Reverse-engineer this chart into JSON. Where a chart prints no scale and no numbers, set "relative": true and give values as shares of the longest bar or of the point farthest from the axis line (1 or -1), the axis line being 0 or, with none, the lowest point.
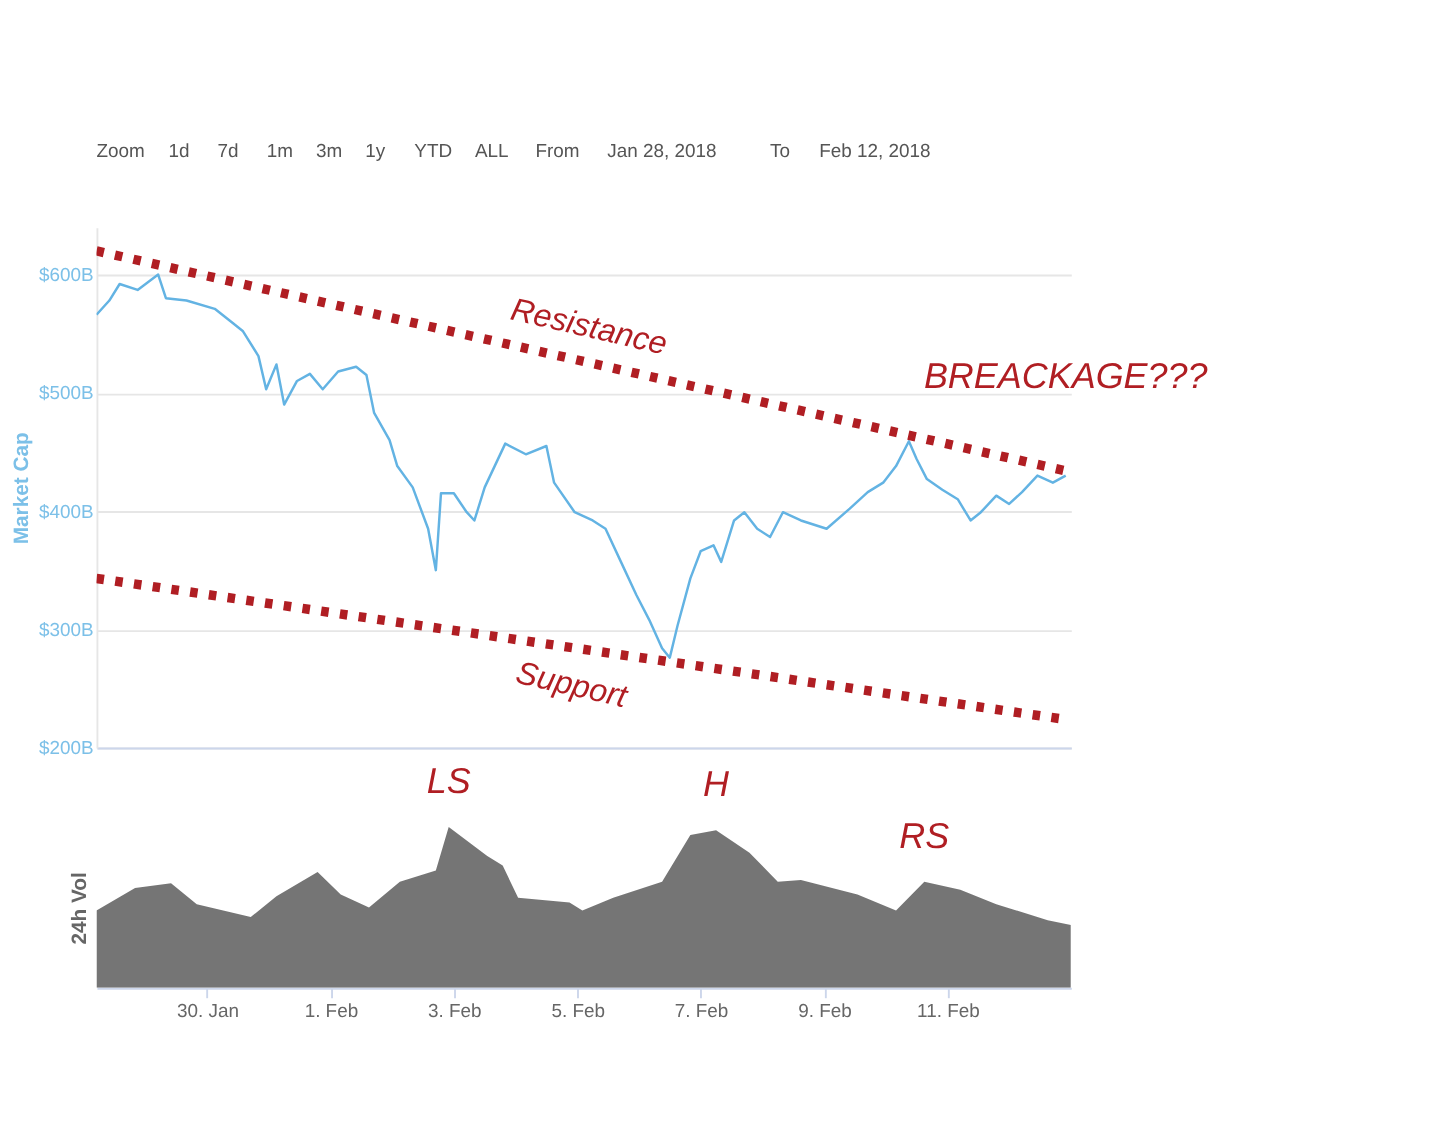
{
  "chart_data": [
    {
      "type": "line",
      "ylabel": "Market Cap",
      "annotations": [
        "Zoom",
        "1d",
        "7d",
        "1m",
        "3m",
        "1y",
        "YTD",
        "ALL",
        "From",
        "Jan 28, 2018",
        "To",
        "Feb 12, 2018",
        {
          "text": "BREACKAGE???",
          "x": "2018-02-12T22:00",
          "y": 434
        }
      ],
      "x": [
        "2018-01-28T05:00",
        "2018-01-28T10:00",
        "2018-01-28T14:00",
        "2018-01-28T21:00",
        "2018-01-29T05:00",
        "2018-01-29T08:00",
        "2018-01-29T16:00",
        "2018-01-30T03:00",
        "2018-01-30T10:00",
        "2018-01-30T14:00",
        "2018-01-30T20:00",
        "2018-01-30T23:00",
        "2018-01-31T03:00",
        "2018-01-31T06:00",
        "2018-01-31T11:00",
        "2018-01-31T16:00",
        "2018-01-31T21:00",
        "2018-02-01T03:00",
        "2018-02-01T10:00",
        "2018-02-01T14:00",
        "2018-02-01T17:00",
        "2018-02-01T23:00",
        "2018-02-02T02:00",
        "2018-02-02T08:00",
        "2018-02-02T14:00",
        "2018-02-02T17:00",
        "2018-02-02T19:00",
        "2018-02-03T00:00",
        "2018-02-03T05:00",
        "2018-02-03T08:00",
        "2018-02-03T12:00",
        "2018-02-03T20:00",
        "2018-02-04T04:00",
        "2018-02-04T12:00",
        "2018-02-04T15:00",
        "2018-02-04T23:00",
        "2018-02-05T06:00",
        "2018-02-05T11:00",
        "2018-02-05T17:00",
        "2018-02-05T23:00",
        "2018-02-06T04:00",
        "2018-02-06T09:00",
        "2018-02-06T12:00",
        "2018-02-06T15:00",
        "2018-02-06T20:00",
        "2018-02-07T00:00",
        "2018-02-07T05:00",
        "2018-02-07T08:00",
        "2018-02-07T13:00",
        "2018-02-07T17:00",
        "2018-02-07T22:00",
        "2018-02-08T03:00",
        "2018-02-08T08:00",
        "2018-02-08T15:00",
        "2018-02-09T01:00",
        "2018-02-09T10:00",
        "2018-02-09T17:00",
        "2018-02-09T23:00",
        "2018-02-10T04:00",
        "2018-02-10T09:00",
        "2018-02-10T12:00",
        "2018-02-10T16:00",
        "2018-02-10T22:00",
        "2018-02-11T04:00",
        "2018-02-11T09:00",
        "2018-02-11T13:00",
        "2018-02-11T19:00",
        "2018-02-12T00:00",
        "2018-02-12T05:00",
        "2018-02-12T11:00",
        "2018-02-12T17:00",
        "2018-02-12T22:00"
      ],
      "series": [
        {
          "color": "#63b3e3",
          "values": [
            566,
            578,
            592,
            587,
            600,
            580,
            578,
            571,
            559,
            552,
            531,
            503,
            524,
            490,
            510,
            516,
            503,
            518,
            522,
            515,
            483,
            460,
            438,
            420,
            385,
            350,
            415,
            415,
            399,
            392,
            420,
            457,
            448,
            455,
            424,
            399,
            392,
            385,
            357,
            329,
            308,
            284,
            276,
            303,
            343,
            366,
            371,
            357,
            392,
            399,
            385,
            378,
            399,
            392,
            385,
            402,
            416,
            424,
            438,
            459,
            444,
            427,
            418,
            410,
            392,
            399,
            413,
            406,
            416,
            430,
            424,
            430
          ]
        },
        {
          "name": "Resistance",
          "type": "line",
          "x": [
            "2018-01-28T05:00",
            "2018-02-12T22:00"
          ],
          "values": [
            620,
            434
          ],
          "color": "#b01e23",
          "line_style": "dotted"
        },
        {
          "name": "Support",
          "type": "line",
          "x": [
            "2018-01-28T05:00",
            "2018-02-12T21:00"
          ],
          "values": [
            343,
            224
          ],
          "color": "#b01e23",
          "line_style": "dotted"
        }
      ],
      "xlim": [
        "2018-01-28T05:00",
        "2018-02-13T00:00"
      ],
      "ylim": [
        200,
        640
      ],
      "yticks": [
        {
          "value": 200,
          "label": "$200B"
        },
        {
          "value": 300,
          "label": "$300B"
        },
        {
          "value": 400,
          "label": "$400B"
        },
        {
          "value": 500,
          "label": "$500B"
        },
        {
          "value": 600,
          "label": "$600B"
        }
      ],
      "grid": "y",
      "tick_labels": "y"
    },
    {
      "type": "area",
      "ylabel": "24h Vol",
      "relative": true,
      "annotations": [
        {
          "text": "LS",
          "x": "2018-02-02T22:00",
          "y": 1.0
        },
        {
          "text": "H",
          "x": "2018-02-07T06:00",
          "y": 0.98
        },
        {
          "text": "RS",
          "x": "2018-02-10T15:00",
          "y": 0.66
        }
      ],
      "x": [
        "2018-01-28T05:00",
        "2018-01-28T20:00",
        "2018-01-29T10:00",
        "2018-01-29T20:00",
        "2018-01-30T17:00",
        "2018-01-31T03:00",
        "2018-01-31T19:00",
        "2018-02-01T04:00",
        "2018-02-01T15:00",
        "2018-02-02T03:00",
        "2018-02-02T17:00",
        "2018-02-02T22:00",
        "2018-02-03T13:00",
        "2018-02-03T19:00",
        "2018-02-04T01:00",
        "2018-02-04T21:00",
        "2018-02-05T02:00",
        "2018-02-05T14:00",
        "2018-02-06T09:00",
        "2018-02-06T20:00",
        "2018-02-07T06:00",
        "2018-02-07T19:00",
        "2018-02-08T06:00",
        "2018-02-08T15:00",
        "2018-02-09T13:00",
        "2018-02-10T04:00",
        "2018-02-10T15:00",
        "2018-02-11T05:00",
        "2018-02-11T19:00",
        "2018-02-12T15:00",
        "2018-02-13T00:00"
      ],
      "series": [
        {
          "color": "#6e6e6e",
          "values": [
            0.48,
            0.62,
            0.65,
            0.52,
            0.44,
            0.57,
            0.72,
            0.58,
            0.5,
            0.66,
            0.73,
            1.0,
            0.82,
            0.76,
            0.56,
            0.53,
            0.48,
            0.56,
            0.66,
            0.95,
            0.98,
            0.84,
            0.66,
            0.67,
            0.58,
            0.48,
            0.66,
            0.61,
            0.52,
            0.42,
            0.39
          ]
        }
      ],
      "xlim": [
        "2018-01-28T05:00",
        "2018-02-13T00:00"
      ],
      "xticks": [
        {
          "value": "2018-01-30",
          "label": "30. Jan"
        },
        {
          "value": "2018-02-01",
          "label": "1. Feb"
        },
        {
          "value": "2018-02-03",
          "label": "3. Feb"
        },
        {
          "value": "2018-02-05",
          "label": "5. Feb"
        },
        {
          "value": "2018-02-07",
          "label": "7. Feb"
        },
        {
          "value": "2018-02-09",
          "label": "9. Feb"
        },
        {
          "value": "2018-02-11",
          "label": "11. Feb"
        }
      ],
      "tick_labels": "x"
    }
  ]
}
